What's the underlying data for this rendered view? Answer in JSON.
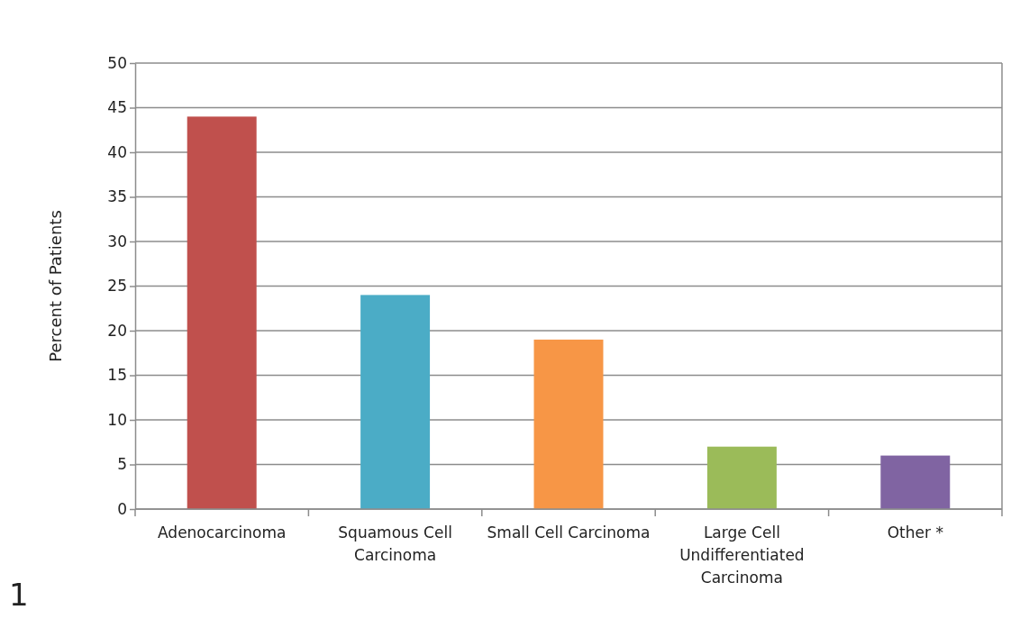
{
  "chart_data": {
    "type": "bar",
    "ylabel": "Percent of Patients",
    "categories": [
      "Adenocarcinoma",
      "Squamous Cell Carcinoma",
      "Small Cell Carcinoma",
      "Large Cell Undifferentiated Carcinoma",
      "Other *"
    ],
    "values": [
      44,
      24,
      19,
      7,
      6
    ],
    "colors": [
      "#c0504d",
      "#4bacc6",
      "#f79646",
      "#9bbb59",
      "#8064a2"
    ],
    "ylim": [
      0,
      50
    ],
    "yticks": [
      0,
      5,
      10,
      15,
      20,
      25,
      30,
      35,
      40,
      45,
      50
    ],
    "grid": "y",
    "annotations": [
      "1"
    ]
  }
}
